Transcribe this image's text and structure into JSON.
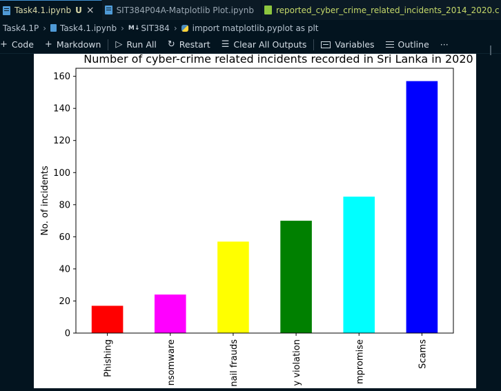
{
  "tabs": [
    {
      "label": "Task4.1.ipynb",
      "modified": "U",
      "close": "×",
      "active": true,
      "kind": "notebook"
    },
    {
      "label": "SIT384P04A-Matplotlib Plot.ipynb",
      "active": false,
      "kind": "notebook"
    },
    {
      "label": "reported_cyber_crime_related_incidents_2014_2020.c",
      "active": false,
      "kind": "csv"
    }
  ],
  "breadcrumb": {
    "folder": "Task4.1P",
    "file": "Task4.1.ipynb",
    "md_badge": "M↓",
    "section": "SIT384",
    "cell": "import matplotlib.pyplot as plt"
  },
  "toolbar": {
    "code": "Code",
    "markdown": "Markdown",
    "run_all": "Run All",
    "restart": "Restart",
    "clear_outputs": "Clear All Outputs",
    "variables": "Variables",
    "outline": "Outline",
    "more": "···",
    "icons": [
      "plus-icon",
      "plus-icon",
      "run-all-icon",
      "restart-icon",
      "clear-outputs-icon",
      "variables-icon",
      "outline-icon",
      "more-icon"
    ]
  },
  "chart_data": {
    "type": "bar",
    "title": "Number of cyber-crime related incidents recorded in Sri Lanka in 2020",
    "xlabel": "",
    "ylabel": "No. of incidents",
    "categories": [
      "Phishing",
      "Ransomware",
      "Email frauds",
      "Privacy violation",
      "Web compromise",
      "Scams"
    ],
    "visible_tick_labels": [
      "Phishing",
      "nsomware",
      "nail frauds",
      "y violation",
      "mpromise",
      "Scams"
    ],
    "values": [
      17,
      24,
      57,
      70,
      85,
      157
    ],
    "colors": [
      "#ff0000",
      "#ff00ff",
      "#ffff00",
      "#008000",
      "#00ffff",
      "#0000ff"
    ],
    "ylim": [
      0,
      165
    ],
    "yticks": [
      0,
      20,
      40,
      60,
      80,
      100,
      120,
      140,
      160
    ],
    "grid": false,
    "legend": "none"
  }
}
